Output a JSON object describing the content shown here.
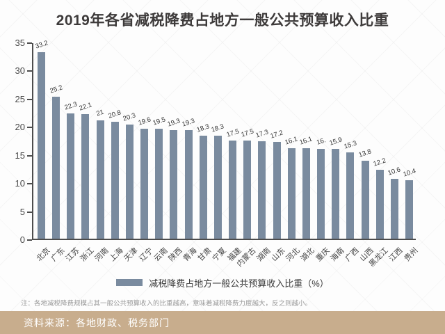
{
  "title": "2019年各省减税降费占地方一般公共预算收入比重",
  "legend": {
    "label": "减税降费占地方一般公共预算收入比重（%）",
    "swatch_color": "#7a8b9f"
  },
  "note": "注：各地减税降费规模占其一般公共预算收入的比重越高，意味着减税降费力度越大，反之则越小。",
  "footer": {
    "source": "资料来源：各地财政、税务部门",
    "bg_color": "#c8ad8d",
    "text_color": "#ffffff"
  },
  "chart_data": {
    "type": "bar",
    "title": "2019年各省减税降费占地方一般公共预算收入比重",
    "categories": [
      "北京",
      "广东",
      "江苏",
      "浙江",
      "河南",
      "上海",
      "天津",
      "辽宁",
      "云南",
      "陕西",
      "青海",
      "甘肃",
      "宁夏",
      "福建",
      "内蒙古",
      "湖南",
      "山东",
      "河北",
      "湖北",
      "重庆",
      "海南",
      "广西",
      "山西",
      "黑龙江",
      "江西",
      "贵州"
    ],
    "values": [
      33.2,
      25.2,
      22.3,
      22.1,
      21,
      20.8,
      20.3,
      19.6,
      19.5,
      19.3,
      19.3,
      18.3,
      18.3,
      17.5,
      17.5,
      17.3,
      17.2,
      16.1,
      16.1,
      16,
      15.9,
      15.3,
      13.8,
      12.2,
      10.6,
      10.4
    ],
    "value_labels": [
      "33.2",
      "25.2",
      "22.3",
      "22.1",
      "21",
      "20.8",
      "20.3",
      "19.6",
      "19.5",
      "19.3",
      "19.3",
      "18.3",
      "18.3",
      "17.5",
      "17.5",
      "17.3",
      "17.2",
      "16.1",
      "16.1",
      "16.",
      "15.9",
      "15.3",
      "13.8",
      "12.2",
      "10.6",
      "10.4"
    ],
    "xlabel": "",
    "ylabel": "",
    "ylim": [
      0,
      35
    ],
    "ytick_step": 5,
    "yticks": [
      "0",
      "5",
      "10",
      "15",
      "20",
      "25",
      "30",
      "35"
    ],
    "bar_color": "#7a8b9f",
    "grid": false,
    "legend_position": "bottom"
  }
}
